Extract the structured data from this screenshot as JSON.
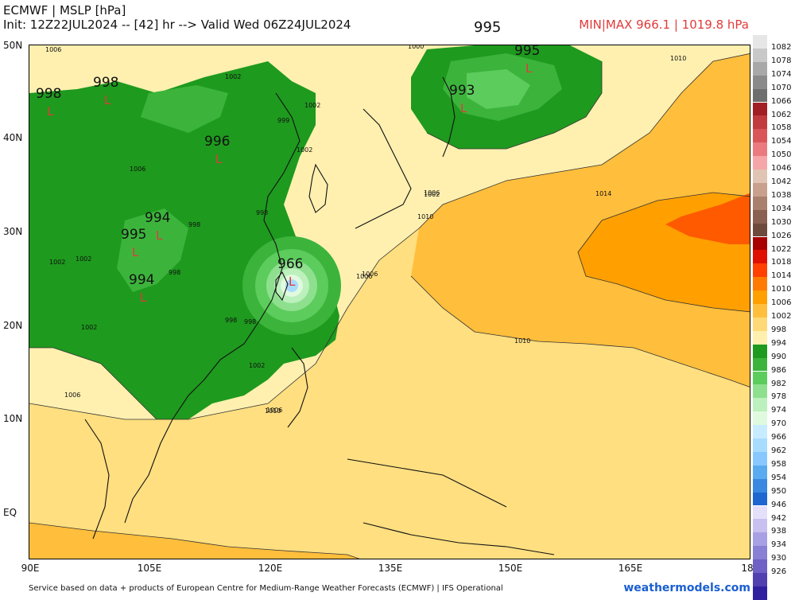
{
  "header": {
    "title": "ECMWF | MSLP [hPa]",
    "init_line": "Init: 12Z22JUL2024 -- [42] hr --> Valid Wed 06Z24JUL2024",
    "minmax": "MIN|MAX 966.1 | 1019.8 hPa",
    "top_center_value": "995"
  },
  "axes": {
    "lat_labels": [
      "50N",
      "40N",
      "30N",
      "20N",
      "10N",
      "EQ"
    ],
    "lon_labels": [
      "90E",
      "105E",
      "120E",
      "135E",
      "150E",
      "165E",
      "18"
    ]
  },
  "pressure_centers": [
    {
      "value": "998",
      "marker": "L"
    },
    {
      "value": "998",
      "marker": "L"
    },
    {
      "value": "996",
      "marker": "L"
    },
    {
      "value": "994",
      "marker": "L"
    },
    {
      "value": "995",
      "marker": "L"
    },
    {
      "value": "994",
      "marker": "L"
    },
    {
      "value": "966",
      "marker": "L"
    },
    {
      "value": "993",
      "marker": "L"
    },
    {
      "value": "995",
      "marker": "L"
    }
  ],
  "contour_labels": [
    "1006",
    "1000",
    "1002",
    "1002",
    "999",
    "1002",
    "1006",
    "998",
    "998",
    "998",
    "1002",
    "1002",
    "1006",
    "1006",
    "1006",
    "1010",
    "1006",
    "1010",
    "1010",
    "1014",
    "1010",
    "1002",
    "998",
    "1002",
    "998",
    "1006",
    "1002"
  ],
  "colorbar": {
    "levels": [
      "1082",
      "1078",
      "1074",
      "1070",
      "1066",
      "1062",
      "1058",
      "1054",
      "1050",
      "1046",
      "1042",
      "1038",
      "1034",
      "1030",
      "1026",
      "1022",
      "1018",
      "1014",
      "1010",
      "1006",
      "1002",
      "998",
      "994",
      "990",
      "986",
      "982",
      "978",
      "974",
      "970",
      "966",
      "962",
      "958",
      "954",
      "950",
      "946",
      "942",
      "938",
      "934",
      "930",
      "926"
    ],
    "colors": [
      "#e6e6e6",
      "#c8c8c8",
      "#a8a8a8",
      "#8a8a8a",
      "#6e6e6e",
      "#a01e24",
      "#c03a3e",
      "#d8565a",
      "#ea7a7e",
      "#f6a6a8",
      "#e0c4b4",
      "#c8a08c",
      "#a8806c",
      "#8a6050",
      "#6e4a3c",
      "#a80000",
      "#e01000",
      "#ff4000",
      "#ff7a00",
      "#ffa000",
      "#ffbe3c",
      "#ffd878",
      "#fff0b0",
      "#1e9a1e",
      "#3cb43c",
      "#5ccc5c",
      "#8ee08e",
      "#bcf0bc",
      "#e0fae0",
      "#c8ecff",
      "#a8dcff",
      "#88c8ff",
      "#5aaaf0",
      "#3a88e0",
      "#1e66d0",
      "#e4e0fa",
      "#c8c0f0",
      "#a8a0e4",
      "#8880d4",
      "#6e60c4",
      "#5040b0",
      "#3020a0"
    ],
    "shown_count": 40
  },
  "colors": {
    "title_text": "#111111",
    "minmax_text": "#e23a3a",
    "brand_text": "#1a5fd0",
    "low_marker": "#e23a3a"
  },
  "footer": {
    "attribution": "Service based on data + products of European Centre for Medium-Range Weather Forecasts (ECMWF) | IFS Operational",
    "brand": "weathermodels.com"
  }
}
